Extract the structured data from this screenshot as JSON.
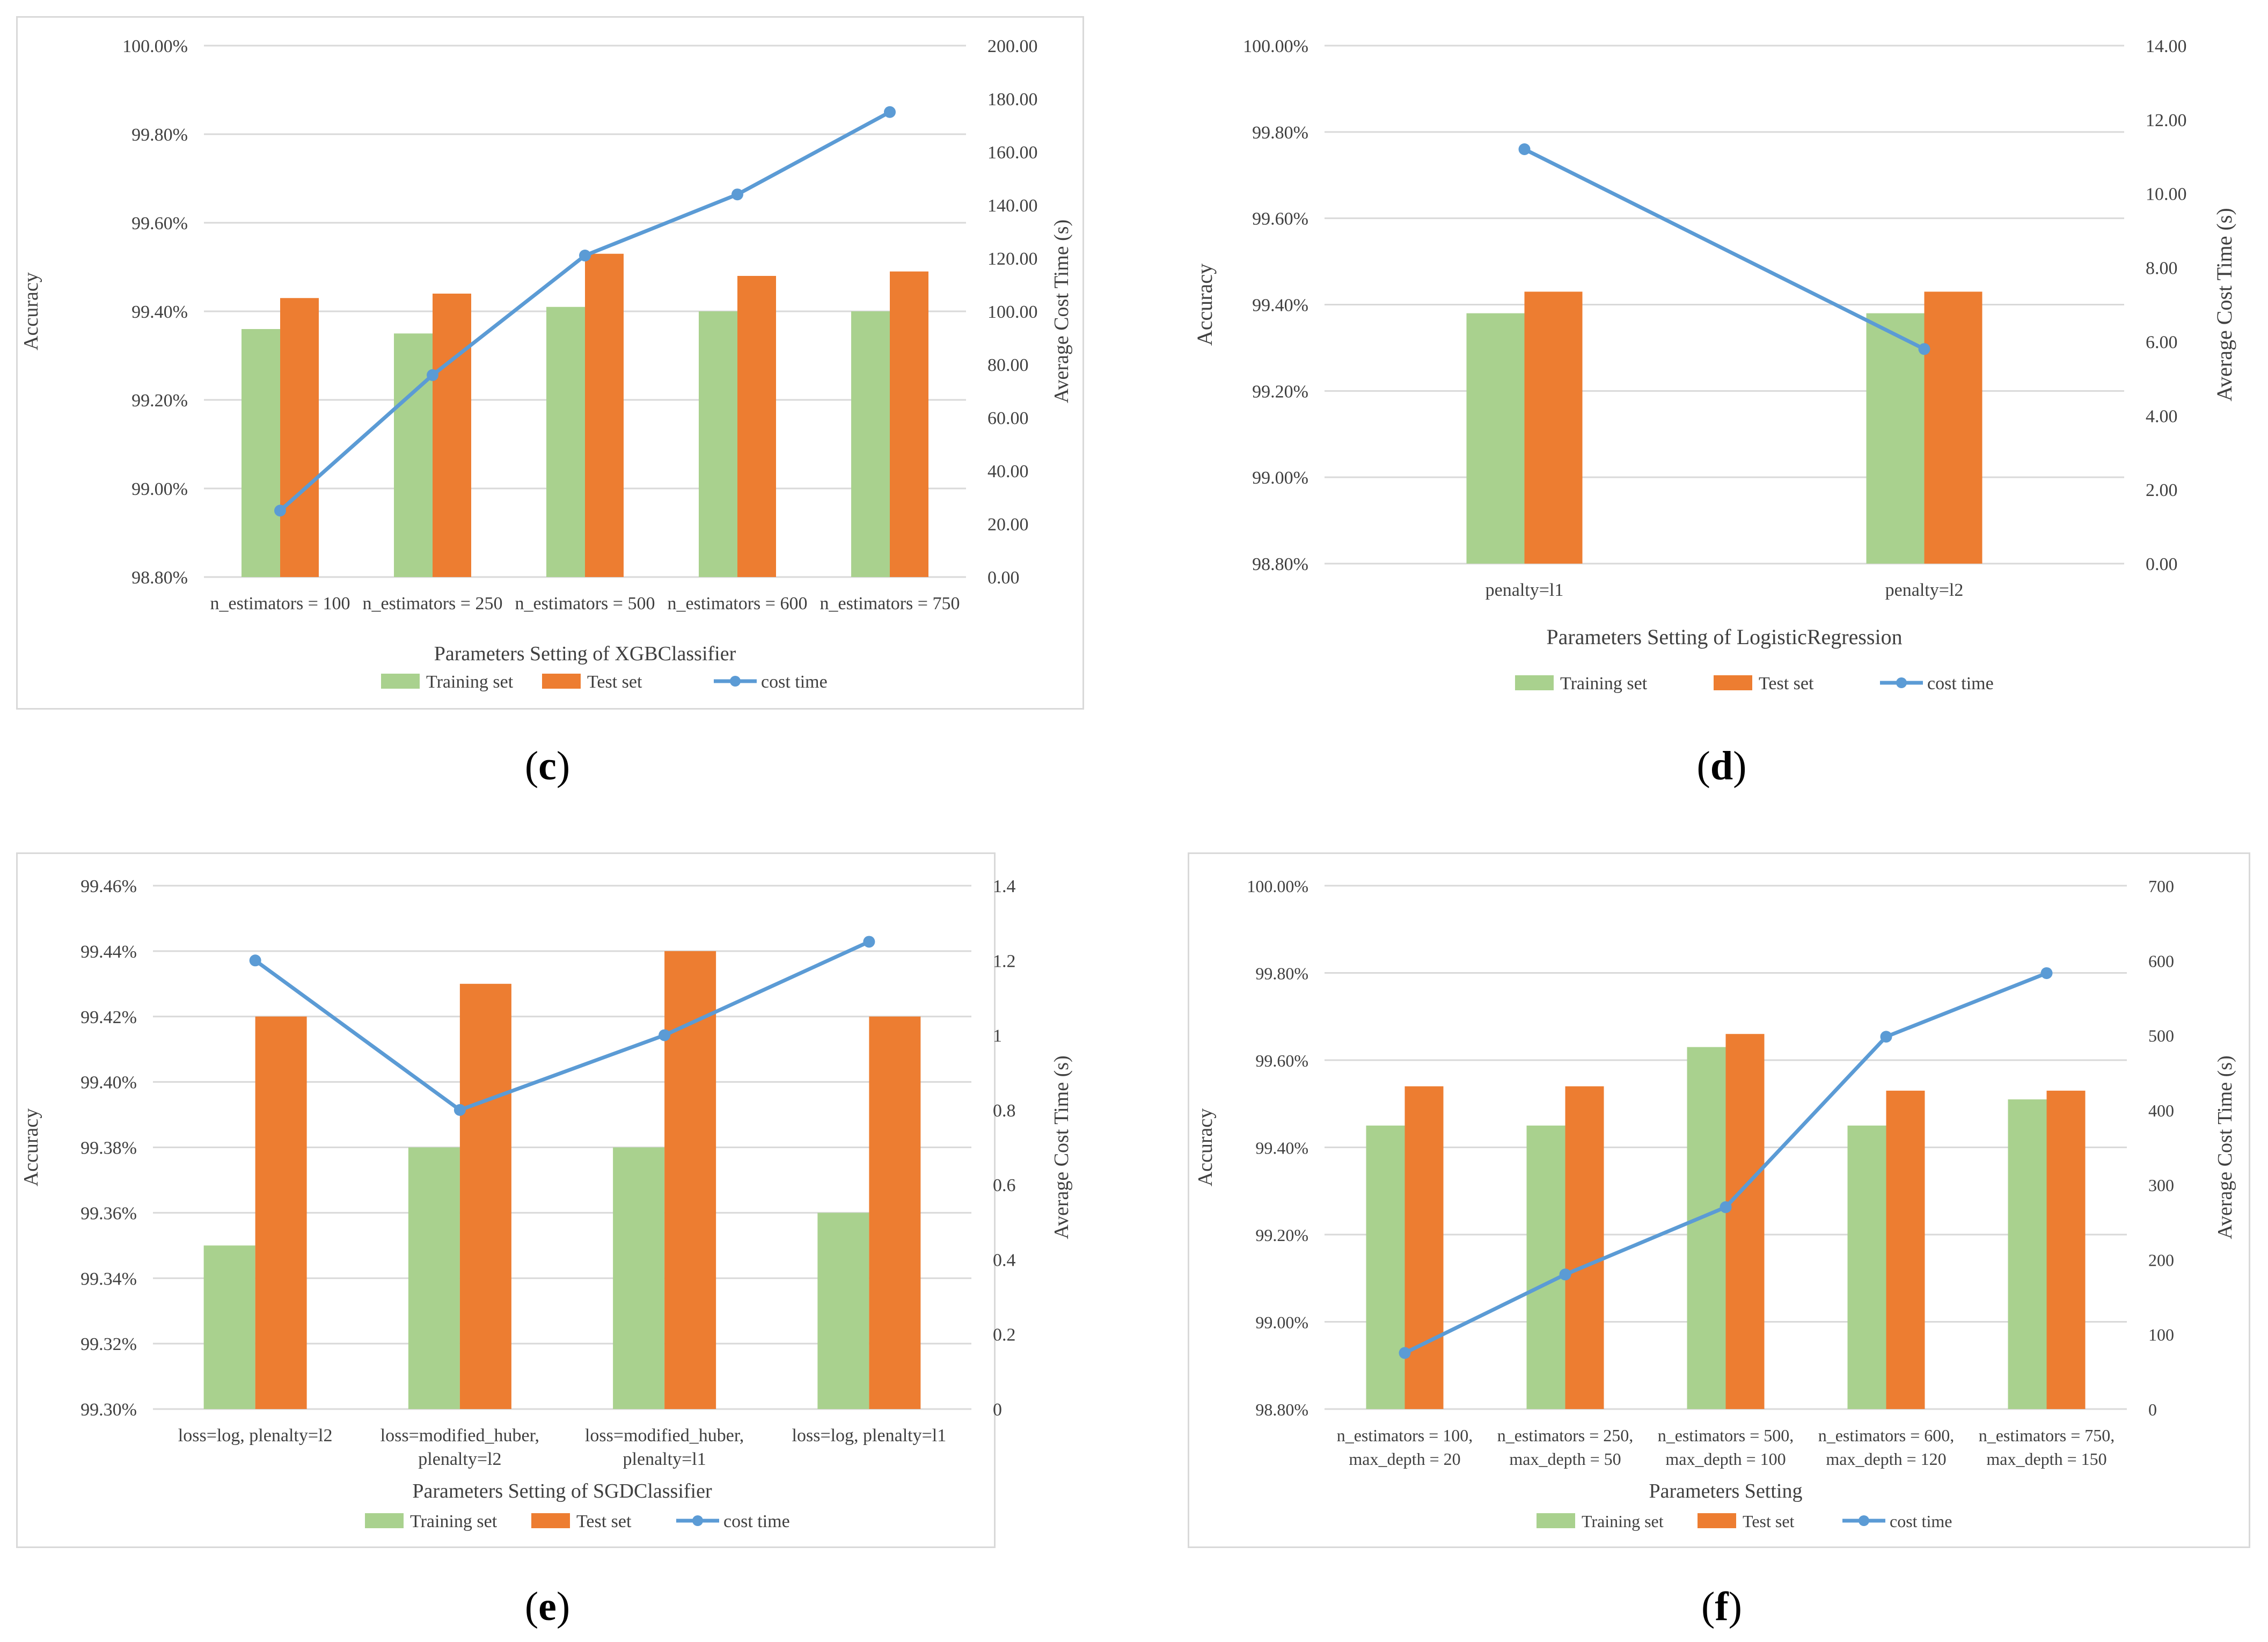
{
  "colors": {
    "training": "#a9d18e",
    "test": "#ed7d31",
    "cost": "#5b9bd5",
    "grid": "#d9d9d9",
    "text": "#404040"
  },
  "legend": {
    "training": "Training set",
    "test": "Test set",
    "cost": "cost time"
  },
  "chart_data": [
    {
      "id": "c",
      "caption_letter": "c",
      "type": "bar+line",
      "xlabel": "Parameters Setting of XGBClassifier",
      "ylabel": "Accuracy",
      "y2label": "Average Cost Time (s)",
      "categories": [
        [
          "n_estimators = 100"
        ],
        [
          "n_estimators = 250"
        ],
        [
          "n_estimators = 500"
        ],
        [
          "n_estimators = 600"
        ],
        [
          "n_estimators = 750"
        ]
      ],
      "ylim": [
        98.8,
        100.0
      ],
      "yticks": [
        "98.80%",
        "99.00%",
        "99.20%",
        "99.40%",
        "99.60%",
        "99.80%",
        "100.00%"
      ],
      "y2lim": [
        0,
        200
      ],
      "y2ticks": [
        "0.00",
        "20.00",
        "40.00",
        "60.00",
        "80.00",
        "100.00",
        "120.00",
        "140.00",
        "160.00",
        "180.00",
        "200.00"
      ],
      "series": [
        {
          "name": "Training set",
          "values": [
            99.36,
            99.35,
            99.41,
            99.4,
            99.4
          ]
        },
        {
          "name": "Test set",
          "values": [
            99.43,
            99.44,
            99.53,
            99.48,
            99.49
          ]
        },
        {
          "name": "cost time",
          "axis": "right",
          "values": [
            25,
            76,
            121,
            144,
            175
          ]
        }
      ]
    },
    {
      "id": "d",
      "caption_letter": "d",
      "type": "bar+line",
      "xlabel": "Parameters Setting of LogisticRegression",
      "ylabel": "Accuracy",
      "y2label": "Average Cost Time (s)",
      "categories": [
        [
          "penalty=l1"
        ],
        [
          "penalty=l2"
        ]
      ],
      "ylim": [
        98.8,
        100.0
      ],
      "yticks": [
        "98.80%",
        "99.00%",
        "99.20%",
        "99.40%",
        "99.60%",
        "99.80%",
        "100.00%"
      ],
      "y2lim": [
        0,
        14
      ],
      "y2ticks": [
        "0.00",
        "2.00",
        "4.00",
        "6.00",
        "8.00",
        "10.00",
        "12.00",
        "14.00"
      ],
      "series": [
        {
          "name": "Training set",
          "values": [
            99.38,
            99.38
          ]
        },
        {
          "name": "Test set",
          "values": [
            99.43,
            99.43
          ]
        },
        {
          "name": "cost time",
          "axis": "right",
          "values": [
            11.2,
            5.8
          ]
        }
      ]
    },
    {
      "id": "e",
      "caption_letter": "e",
      "type": "bar+line",
      "xlabel": "Parameters Setting of SGDClassifier",
      "ylabel": "Accuracy",
      "y2label": "Average Cost Time (s)",
      "categories": [
        [
          "loss=log, plenalty=l2"
        ],
        [
          "loss=modified_huber,",
          "plenalty=l2"
        ],
        [
          "loss=modified_huber,",
          "plenalty=l1"
        ],
        [
          "loss=log, plenalty=l1"
        ]
      ],
      "ylim": [
        99.3,
        99.46
      ],
      "yticks": [
        "99.30%",
        "99.32%",
        "99.34%",
        "99.36%",
        "99.38%",
        "99.40%",
        "99.42%",
        "99.44%",
        "99.46%"
      ],
      "y2lim": [
        0,
        1.4
      ],
      "y2ticks": [
        "0",
        "0.2",
        "0.4",
        "0.6",
        "0.8",
        "1",
        "1.2",
        "1.4"
      ],
      "series": [
        {
          "name": "Training set",
          "values": [
            99.35,
            99.38,
            99.38,
            99.36
          ]
        },
        {
          "name": "Test set",
          "values": [
            99.42,
            99.43,
            99.44,
            99.42
          ]
        },
        {
          "name": "cost time",
          "axis": "right",
          "values": [
            1.2,
            0.8,
            1.0,
            1.25
          ]
        }
      ]
    },
    {
      "id": "f",
      "caption_letter": "f",
      "type": "bar+line",
      "xlabel": "Parameters Setting",
      "ylabel": "Accuracy",
      "y2label": "Average Cost Time (s)",
      "categories": [
        [
          "n_estimators = 100,",
          "max_depth = 20"
        ],
        [
          "n_estimators = 250,",
          "max_depth = 50"
        ],
        [
          "n_estimators = 500,",
          "max_depth = 100"
        ],
        [
          "n_estimators = 600,",
          "max_depth = 120"
        ],
        [
          "n_estimators = 750,",
          "max_depth = 150"
        ]
      ],
      "ylim": [
        98.8,
        100.0
      ],
      "yticks": [
        "98.80%",
        "99.00%",
        "99.20%",
        "99.40%",
        "99.60%",
        "99.80%",
        "100.00%"
      ],
      "y2lim": [
        0,
        700
      ],
      "y2ticks": [
        "0",
        "100",
        "200",
        "300",
        "400",
        "500",
        "600",
        "700"
      ],
      "series": [
        {
          "name": "Training set",
          "values": [
            99.45,
            99.45,
            99.63,
            99.45,
            99.51
          ]
        },
        {
          "name": "Test set",
          "values": [
            99.54,
            99.54,
            99.66,
            99.53,
            99.53
          ]
        },
        {
          "name": "cost time",
          "axis": "right",
          "values": [
            75,
            180,
            270,
            498,
            583
          ]
        }
      ]
    }
  ]
}
